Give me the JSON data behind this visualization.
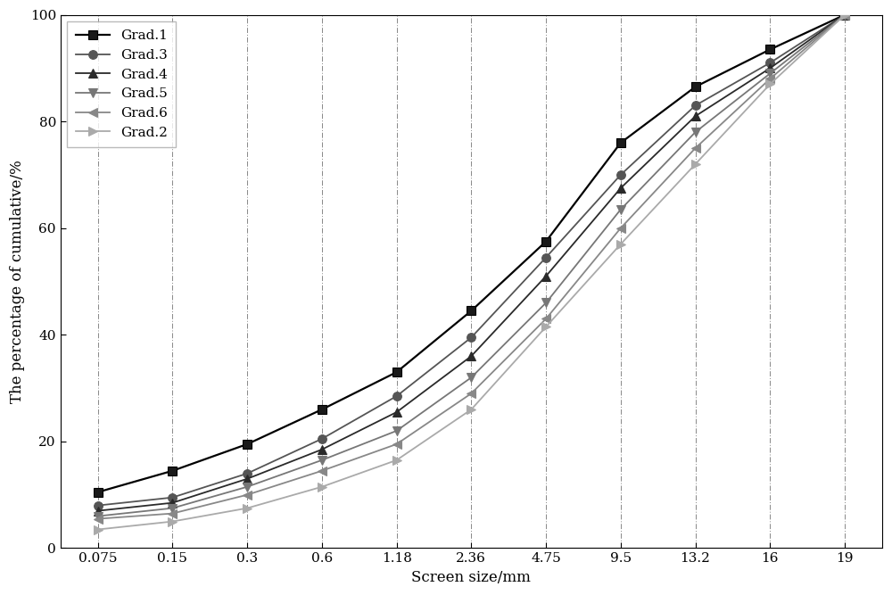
{
  "series": [
    {
      "label": "Grad.1",
      "color": "#000000",
      "linewidth": 1.6,
      "marker": "s",
      "markersize": 7,
      "markerfacecolor": "#1a1a1a",
      "values": [
        10.5,
        14.5,
        19.5,
        26.0,
        33.0,
        44.5,
        57.5,
        76.0,
        86.5,
        93.5,
        100.0
      ]
    },
    {
      "label": "Grad.3",
      "color": "#555555",
      "linewidth": 1.3,
      "marker": "o",
      "markersize": 7,
      "markerfacecolor": "#555555",
      "values": [
        8.0,
        9.5,
        14.0,
        20.5,
        28.5,
        39.5,
        54.5,
        70.0,
        83.0,
        91.0,
        100.0
      ]
    },
    {
      "label": "Grad.4",
      "color": "#2a2a2a",
      "linewidth": 1.3,
      "marker": "^",
      "markersize": 7,
      "markerfacecolor": "#2a2a2a",
      "values": [
        7.0,
        8.5,
        13.0,
        18.5,
        25.5,
        36.0,
        51.0,
        67.5,
        81.0,
        90.0,
        100.0
      ]
    },
    {
      "label": "Grad.5",
      "color": "#777777",
      "linewidth": 1.3,
      "marker": "v",
      "markersize": 7,
      "markerfacecolor": "#777777",
      "values": [
        6.0,
        7.5,
        11.5,
        16.5,
        22.0,
        32.0,
        46.0,
        63.5,
        78.0,
        89.0,
        100.0
      ]
    },
    {
      "label": "Grad.6",
      "color": "#888888",
      "linewidth": 1.3,
      "marker": "<",
      "markersize": 7,
      "markerfacecolor": "#888888",
      "values": [
        5.5,
        6.5,
        10.0,
        14.5,
        19.5,
        29.0,
        43.0,
        60.0,
        75.0,
        88.0,
        100.0
      ]
    },
    {
      "label": "Grad.2",
      "color": "#aaaaaa",
      "linewidth": 1.3,
      "marker": ">",
      "markersize": 7,
      "markerfacecolor": "#aaaaaa",
      "values": [
        3.5,
        5.0,
        7.5,
        11.5,
        16.5,
        26.0,
        41.5,
        57.0,
        72.0,
        87.0,
        100.0
      ]
    }
  ],
  "x_labels": [
    "0.075",
    "0.15",
    "0.3",
    "0.6",
    "1.18",
    "2.36",
    "4.75",
    "9.5",
    "13.2",
    "16",
    "19"
  ],
  "xlabel": "Screen size/mm",
  "ylabel": "The percentage of cumulative/%",
  "ylim": [
    0,
    100
  ],
  "yticks": [
    0,
    20,
    40,
    60,
    80,
    100
  ],
  "legend_loc": "upper left",
  "legend_fontsize": 11,
  "axis_fontsize": 12,
  "tick_fontsize": 11,
  "background_color": "#ffffff",
  "figwidth": 10.0,
  "figheight": 6.67,
  "dpi": 100
}
